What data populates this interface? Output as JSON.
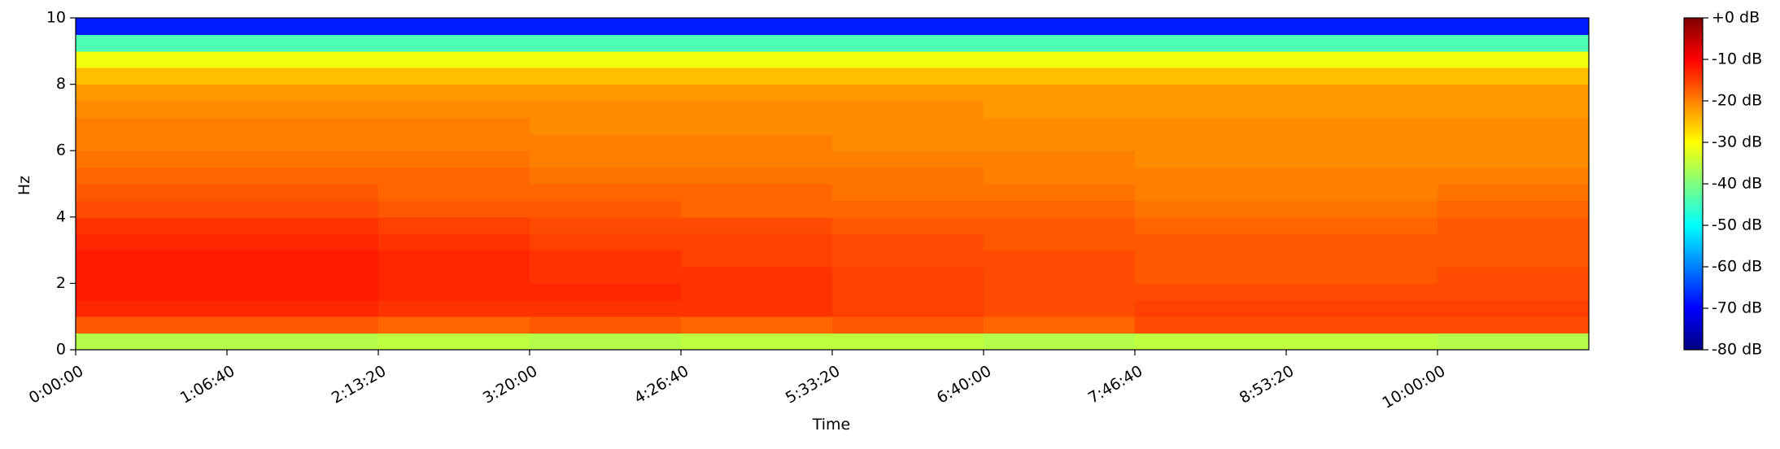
{
  "chart_data": {
    "type": "spectrogram",
    "xlabel": "Time",
    "ylabel": "Hz",
    "colormap": "jet",
    "xlim": [
      0,
      40000
    ],
    "ylim": [
      0,
      10
    ],
    "clim": [
      -80,
      0
    ],
    "xticks": [
      {
        "value": 0,
        "label": "0:00:00"
      },
      {
        "value": 4000,
        "label": "1:06:40"
      },
      {
        "value": 8000,
        "label": "2:13:20"
      },
      {
        "value": 12000,
        "label": "3:20:00"
      },
      {
        "value": 16000,
        "label": "4:26:40"
      },
      {
        "value": 20000,
        "label": "5:33:20"
      },
      {
        "value": 24000,
        "label": "6:40:00"
      },
      {
        "value": 28000,
        "label": "7:46:40"
      },
      {
        "value": 32000,
        "label": "8:53:20"
      },
      {
        "value": 36000,
        "label": "10:00:00"
      }
    ],
    "yticks": [
      0,
      2,
      4,
      6,
      8,
      10
    ],
    "cticks": [
      {
        "value": 0,
        "label": "+0 dB"
      },
      {
        "value": -10,
        "label": "-10 dB"
      },
      {
        "value": -20,
        "label": "-20 dB"
      },
      {
        "value": -30,
        "label": "-30 dB"
      },
      {
        "value": -40,
        "label": "-40 dB"
      },
      {
        "value": -50,
        "label": "-50 dB"
      },
      {
        "value": -60,
        "label": "-60 dB"
      },
      {
        "value": -70,
        "label": "-70 dB"
      },
      {
        "value": -80,
        "label": "-80 dB"
      }
    ],
    "x_edges": [
      0,
      4000,
      8000,
      12000,
      16000,
      20000,
      24000,
      28000,
      32000,
      36000,
      40000
    ],
    "y_edges": [
      0,
      0.5,
      1,
      1.5,
      2,
      2.5,
      3,
      3.5,
      4,
      4.5,
      5,
      5.5,
      6,
      6.5,
      7,
      7.5,
      8,
      8.5,
      9,
      9.5,
      10
    ],
    "values": [
      [
        -36,
        -36,
        -35,
        -36,
        -35,
        -35,
        -36,
        -35,
        -35,
        -36
      ],
      [
        -17,
        -17,
        -18,
        -17,
        -18,
        -17,
        -18,
        -16,
        -16,
        -16
      ],
      [
        -13,
        -13,
        -14,
        -14,
        -14,
        -15,
        -16,
        -15,
        -15,
        -15
      ],
      [
        -12,
        -12,
        -13,
        -13,
        -14,
        -15,
        -16,
        -16,
        -16,
        -16
      ],
      [
        -12,
        -12,
        -13,
        -14,
        -14,
        -15,
        -16,
        -17,
        -17,
        -16
      ],
      [
        -12,
        -12,
        -13,
        -14,
        -15,
        -16,
        -16,
        -17,
        -17,
        -17
      ],
      [
        -13,
        -13,
        -14,
        -15,
        -15,
        -16,
        -17,
        -17,
        -17,
        -17
      ],
      [
        -14,
        -14,
        -15,
        -16,
        -16,
        -17,
        -17,
        -18,
        -18,
        -17
      ],
      [
        -16,
        -16,
        -17,
        -17,
        -18,
        -18,
        -18,
        -19,
        -19,
        -18
      ],
      [
        -17,
        -17,
        -18,
        -18,
        -18,
        -19,
        -19,
        -20,
        -20,
        -19
      ],
      [
        -18,
        -18,
        -18,
        -19,
        -19,
        -19,
        -20,
        -20,
        -20,
        -20
      ],
      [
        -19,
        -19,
        -19,
        -20,
        -20,
        -20,
        -20,
        -21,
        -21,
        -21
      ],
      [
        -20,
        -20,
        -20,
        -20,
        -20,
        -21,
        -21,
        -21,
        -21,
        -21
      ],
      [
        -20,
        -20,
        -20,
        -21,
        -21,
        -21,
        -21,
        -21,
        -21,
        -21
      ],
      [
        -21,
        -21,
        -21,
        -21,
        -21,
        -21,
        -22,
        -22,
        -22,
        -22
      ],
      [
        -22,
        -22,
        -22,
        -22,
        -22,
        -22,
        -22,
        -22,
        -22,
        -22
      ],
      [
        -25,
        -25,
        -25,
        -25,
        -25,
        -25,
        -25,
        -25,
        -25,
        -25
      ],
      [
        -31,
        -31,
        -31,
        -31,
        -31,
        -31,
        -31,
        -31,
        -31,
        -31
      ],
      [
        -44,
        -44,
        -44,
        -44,
        -44,
        -44,
        -44,
        -44,
        -44,
        -44
      ],
      [
        -68,
        -68,
        -68,
        -68,
        -68,
        -68,
        -68,
        -68,
        -68,
        -68
      ]
    ]
  }
}
